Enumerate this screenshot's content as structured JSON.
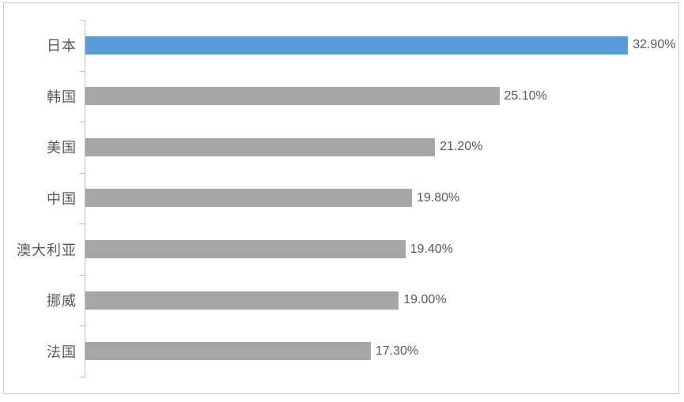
{
  "chart_data": {
    "type": "bar",
    "orientation": "horizontal",
    "title": "",
    "categories": [
      "日本",
      "韩国",
      "美国",
      "中国",
      "澳大利亚",
      "挪威",
      "法国"
    ],
    "values": [
      32.9,
      25.1,
      21.2,
      19.8,
      19.4,
      19.0,
      17.3
    ],
    "value_labels": [
      "32.90%",
      "25.10%",
      "21.20%",
      "19.80%",
      "19.40%",
      "19.00%",
      "17.30%"
    ],
    "xlim": [
      0,
      35
    ],
    "grid": false,
    "legend": "none",
    "data_labels": "outside-end",
    "highlight_index": 0,
    "colors": {
      "highlight_bar": "#5B9BD5",
      "default_bar": "#A6A6A6",
      "axis_line": "#BFBFBF",
      "label_text": "#595959",
      "border": "#CCCCCC"
    }
  }
}
